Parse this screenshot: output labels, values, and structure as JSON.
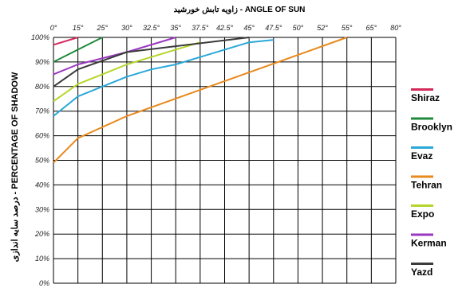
{
  "chart_data": {
    "type": "line",
    "title": "زاویه تابش خورشید - ANGLE OF SUN",
    "xlabel": "زاویه تابش خورشید - ANGLE OF SUN",
    "ylabel": "درصد سایه اندازی - PERCENTAGE OF SHADOW",
    "x_ticks": [
      "0°",
      "15°",
      "25°",
      "30°",
      "32.5°",
      "35°",
      "37.5°",
      "42.5°",
      "45°",
      "47.5°",
      "50°",
      "52°",
      "55°",
      "65°",
      "80°"
    ],
    "y_ticks": [
      "0%",
      "10%",
      "20%",
      "30%",
      "40%",
      "50%",
      "60%",
      "70%",
      "80%",
      "90%",
      "100%"
    ],
    "ylim": [
      0,
      100
    ],
    "grid": true,
    "legend_position": "right",
    "series": [
      {
        "name": "Shiraz",
        "color": "#d42a5c",
        "x_index": [
          0,
          1
        ],
        "values": [
          97,
          100
        ]
      },
      {
        "name": "Brooklyn",
        "color": "#1f8a3c",
        "x_index": [
          0,
          1,
          2
        ],
        "values": [
          90,
          95,
          100
        ]
      },
      {
        "name": "Evaz",
        "color": "#2aa8d8",
        "x_index": [
          0,
          1,
          2,
          3,
          4,
          5,
          6,
          7,
          8,
          9
        ],
        "values": [
          68,
          76,
          80,
          84,
          87,
          89,
          92,
          95,
          98,
          99
        ]
      },
      {
        "name": "Tehran",
        "color": "#e8891c",
        "x_index": [
          0,
          1,
          3,
          12
        ],
        "values": [
          49,
          59,
          68,
          100
        ]
      },
      {
        "name": "Expo",
        "color": "#b4d62a",
        "x_index": [
          0,
          1,
          2,
          3,
          4,
          5,
          6
        ],
        "values": [
          74,
          81,
          85,
          89,
          92,
          95,
          98
        ]
      },
      {
        "name": "Kerman",
        "color": "#9a37c0",
        "x_index": [
          0,
          1,
          3,
          5
        ],
        "values": [
          85,
          89,
          94,
          100
        ]
      },
      {
        "name": "Yazd",
        "color": "#3a3a3a",
        "x_index": [
          0,
          1,
          3,
          8
        ],
        "values": [
          80,
          87,
          94,
          100
        ]
      }
    ]
  }
}
